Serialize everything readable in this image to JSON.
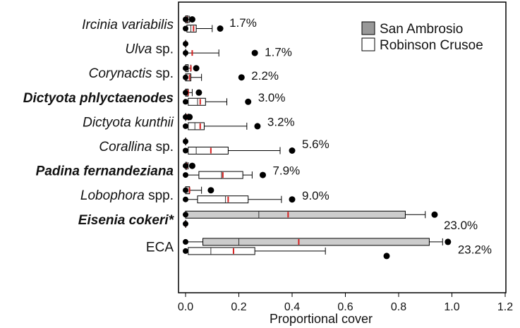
{
  "chart_data": {
    "type": "boxplot",
    "orientation": "horizontal",
    "xlabel": "Proportional cover",
    "xlim": [
      0,
      1.2
    ],
    "xticks": [
      0.0,
      0.2,
      0.4,
      0.6,
      0.8,
      1.0,
      1.2
    ],
    "xtick_labels": [
      "0.0",
      "0.2",
      "0.4",
      "0.6",
      "0.8",
      "1.0",
      "1.2"
    ],
    "grid": false,
    "legend_position": "top-right",
    "series": [
      {
        "name": "San Ambrosio",
        "color": "#cccccc"
      },
      {
        "name": "Robinson Crusoe",
        "color": "#ffffff"
      }
    ],
    "median_color": "#333333",
    "mean_color": "#d62020",
    "categories": [
      {
        "label": "Ircinia variabilis",
        "style": "italic",
        "percent": "1.7%",
        "boxes": [
          {
            "series": "San Ambrosio",
            "min": 0,
            "q1": 0,
            "median": 0,
            "q3": 0.01,
            "max": 0.015,
            "mean": 0.005,
            "outliers": [
              0.025
            ]
          },
          {
            "series": "Robinson Crusoe",
            "min": 0,
            "q1": 0.005,
            "median": 0.02,
            "q3": 0.04,
            "max": 0.1,
            "mean": 0.03,
            "outliers": [
              0.13
            ]
          }
        ]
      },
      {
        "label": "Ulva",
        "suffix": " sp.",
        "style": "italic",
        "percent": "1.7%",
        "boxes": [
          {
            "series": "San Ambrosio",
            "min": 0,
            "q1": 0,
            "median": 0,
            "q3": 0,
            "max": 0,
            "mean": 0,
            "outliers": []
          },
          {
            "series": "Robinson Crusoe",
            "min": 0,
            "q1": 0,
            "median": 0,
            "q3": 0,
            "max": 0.125,
            "mean": 0.025,
            "outliers": [
              0.26
            ]
          }
        ]
      },
      {
        "label": "Corynactis",
        "suffix": " sp.",
        "style": "italic",
        "percent": "2.2%",
        "boxes": [
          {
            "series": "San Ambrosio",
            "min": 0,
            "q1": 0,
            "median": 0,
            "q3": 0.01,
            "max": 0.02,
            "mean": 0.02,
            "outliers": [
              0.04
            ]
          },
          {
            "series": "Robinson Crusoe",
            "min": 0,
            "q1": 0,
            "median": 0.005,
            "q3": 0.02,
            "max": 0.06,
            "mean": 0.015,
            "outliers": [
              0.21
            ]
          }
        ]
      },
      {
        "label": "Dictyota phlyctaenodes",
        "style": "bold-italic",
        "percent": "3.0%",
        "boxes": [
          {
            "series": "San Ambrosio",
            "min": 0,
            "q1": 0,
            "median": 0.005,
            "q3": 0.01,
            "max": 0.025,
            "mean": 0.01,
            "outliers": [
              0.05
            ]
          },
          {
            "series": "Robinson Crusoe",
            "min": 0,
            "q1": 0.01,
            "median": 0.045,
            "q3": 0.075,
            "max": 0.155,
            "mean": 0.055,
            "outliers": [
              0.235
            ]
          }
        ]
      },
      {
        "label": "Dictyota kunthii",
        "style": "italic",
        "percent": "3.2%",
        "boxes": [
          {
            "series": "San Ambrosio",
            "min": 0,
            "q1": 0,
            "median": 0,
            "q3": 0,
            "max": 0.01,
            "mean": 0.005,
            "outliers": [
              0.015
            ]
          },
          {
            "series": "Robinson Crusoe",
            "min": 0,
            "q1": 0.01,
            "median": 0.035,
            "q3": 0.07,
            "max": 0.23,
            "mean": 0.055,
            "outliers": [
              0.27
            ]
          }
        ]
      },
      {
        "label": "Corallina",
        "suffix": " sp.",
        "style": "italic",
        "percent": "5.6%",
        "boxes": [
          {
            "series": "San Ambrosio",
            "min": 0,
            "q1": 0,
            "median": 0,
            "q3": 0,
            "max": 0,
            "mean": 0,
            "outliers": []
          },
          {
            "series": "Robinson Crusoe",
            "min": 0,
            "q1": 0.01,
            "median": 0.04,
            "q3": 0.16,
            "max": 0.355,
            "mean": 0.095,
            "outliers": [
              0.4
            ]
          }
        ]
      },
      {
        "label": "Padina fernandeziana",
        "style": "bold-italic",
        "percent": "7.9%",
        "boxes": [
          {
            "series": "San Ambrosio",
            "min": 0,
            "q1": 0,
            "median": 0,
            "q3": 0.005,
            "max": 0.01,
            "mean": 0.005,
            "outliers": [
              0.025
            ]
          },
          {
            "series": "Robinson Crusoe",
            "min": 0,
            "q1": 0.05,
            "median": 0.135,
            "q3": 0.215,
            "max": 0.25,
            "mean": 0.14,
            "outliers": [
              0.29
            ]
          }
        ]
      },
      {
        "label": "Lobophora",
        "suffix": " spp.",
        "style": "italic",
        "percent": "9.0%",
        "boxes": [
          {
            "series": "San Ambrosio",
            "min": 0,
            "q1": 0,
            "median": 0,
            "q3": 0.015,
            "max": 0.06,
            "mean": 0.015,
            "outliers": [
              0.095
            ]
          },
          {
            "series": "Robinson Crusoe",
            "min": 0,
            "q1": 0.045,
            "median": 0.15,
            "q3": 0.235,
            "max": 0.36,
            "mean": 0.16,
            "outliers": [
              0.4
            ]
          }
        ]
      },
      {
        "label": "Eisenia cokeri",
        "suffix": "*",
        "style": "bold-italic",
        "percent": "23.0%",
        "boxes": [
          {
            "series": "San Ambrosio",
            "min": 0,
            "q1": 0,
            "median": 0.275,
            "q3": 0.825,
            "max": 0.9,
            "mean": 0.385,
            "outliers": [
              0.935
            ]
          },
          {
            "series": "Robinson Crusoe",
            "min": 0,
            "q1": 0,
            "median": 0,
            "q3": 0,
            "max": 0,
            "mean": 0,
            "outliers": []
          }
        ]
      },
      {
        "label": "ECA",
        "style": "normal",
        "percent": "23.2%",
        "boxes": [
          {
            "series": "San Ambrosio",
            "min": 0,
            "q1": 0.065,
            "median": 0.2,
            "q3": 0.915,
            "max": 0.965,
            "mean": 0.425,
            "outliers": [
              0.985
            ]
          },
          {
            "series": "Robinson Crusoe",
            "min": 0,
            "q1": 0.01,
            "median": 0.095,
            "q3": 0.26,
            "max": 0.525,
            "mean": 0.18,
            "outliers": [
              0.755
            ]
          }
        ]
      }
    ]
  }
}
